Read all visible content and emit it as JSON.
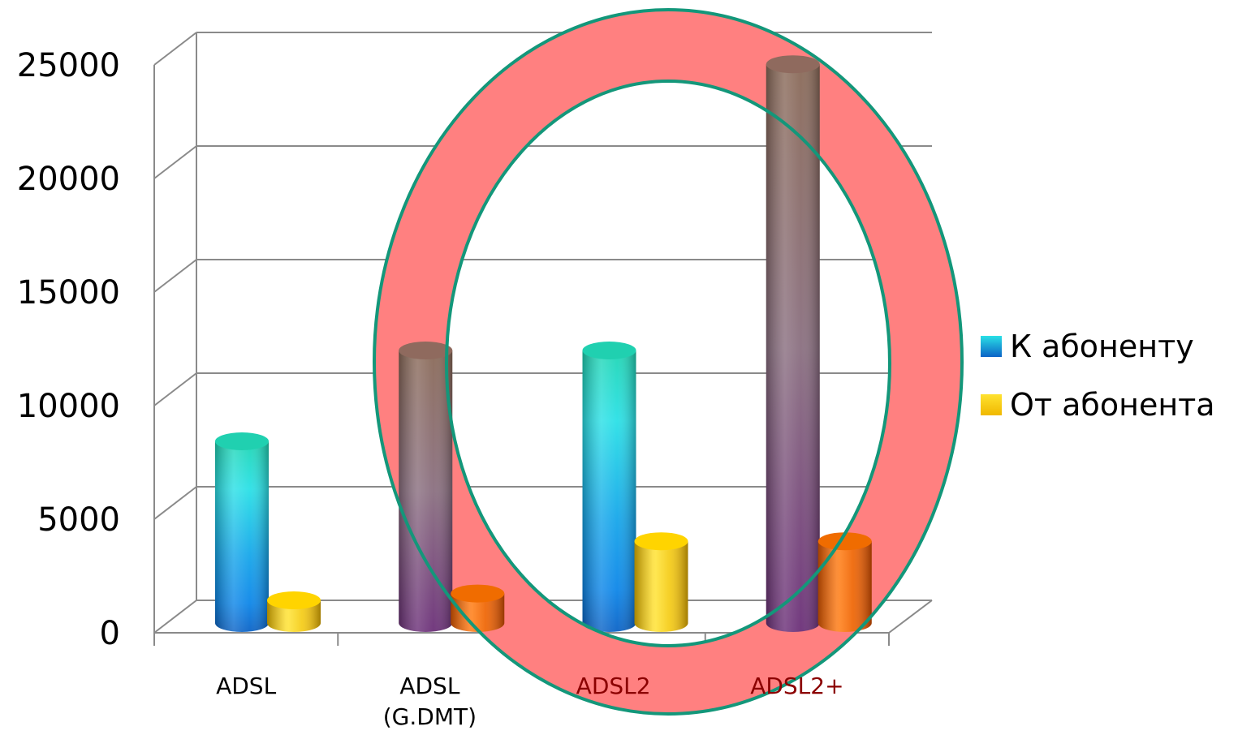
{
  "chart_data": {
    "type": "bar",
    "style": "3d-cylinder",
    "categories": [
      {
        "lines": [
          "ADSL"
        ],
        "color": "#000000"
      },
      {
        "lines": [
          "ADSL",
          "(G.DMT)"
        ],
        "color": "#000000"
      },
      {
        "lines": [
          "ADSL2"
        ],
        "color": "#8b0000"
      },
      {
        "lines": [
          "ADSL2+"
        ],
        "color": "#8b0000"
      }
    ],
    "series": [
      {
        "name": "К абоненту",
        "values": [
          8000,
          12000,
          12000,
          24600
        ],
        "color": "#1aa0e8"
      },
      {
        "name": "От абонента",
        "values": [
          1000,
          1300,
          3600,
          3600
        ],
        "color": "#ffd200"
      }
    ],
    "ylim": [
      0,
      25000
    ],
    "yticks": [
      "0",
      "5000",
      "10000",
      "15000",
      "20000",
      "25000"
    ],
    "grid": true,
    "legend_position": "right",
    "annotations": [
      {
        "type": "ellipse-ring",
        "fill": "#ff8080",
        "stroke": "#13977a",
        "encloses": [
          "ADSL (G.DMT)",
          "ADSL2",
          "ADSL2+"
        ]
      }
    ],
    "highlight_colors": {
      "up_tinted": "#e86000",
      "down_tinted": "#7a3f7a"
    }
  }
}
